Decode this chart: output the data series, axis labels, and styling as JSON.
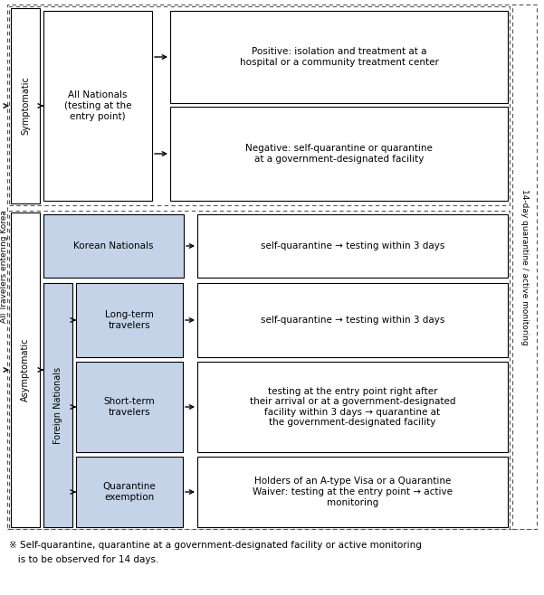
{
  "bg_color": "#ffffff",
  "blue_fill": "#c5d3e8",
  "light_blue_fill": "#c5d3e8",
  "fn_blue": "#c5d3e8",
  "footnote_star": "※",
  "footnote_line1": " Self-quarantine, quarantine at a government-designated facility or active monitoring",
  "footnote_line2": "   is to be observed for 14 days.",
  "right_label": "14-day quarantine / active monitoring",
  "left_label": "All Travelers entering Korea",
  "symptomatic_label": "Symptomatic",
  "asymptomatic_label": "Asymptomatic",
  "all_nationals_text": "All Nationals\n(testing at the\nentry point)",
  "korean_nationals_text": "Korean Nationals",
  "foreign_nationals_text": "Foreign Nationals",
  "long_term_text": "Long-term\ntravelers",
  "short_term_text": "Short-term\ntravelers",
  "quarantine_exemption_text": "Quarantine\nexemption",
  "positive_text": "Positive: isolation and treatment at a\nhospital or a community treatment center",
  "negative_text": "Negative: self-quarantine or quarantine\nat a government-designated facility",
  "korean_outcome": "self-quarantine → testing within 3 days",
  "long_term_outcome": "self-quarantine → testing within 3 days",
  "short_term_outcome": "testing at the entry point right after\ntheir arrival or at a government-designated\nfacility within 3 days → quarantine at\nthe government-designated facility",
  "quarantine_exemption_outcome": "Holders of an A-type Visa or a Quarantine\nWaiver: testing at the entry point → active\nmonitoring"
}
